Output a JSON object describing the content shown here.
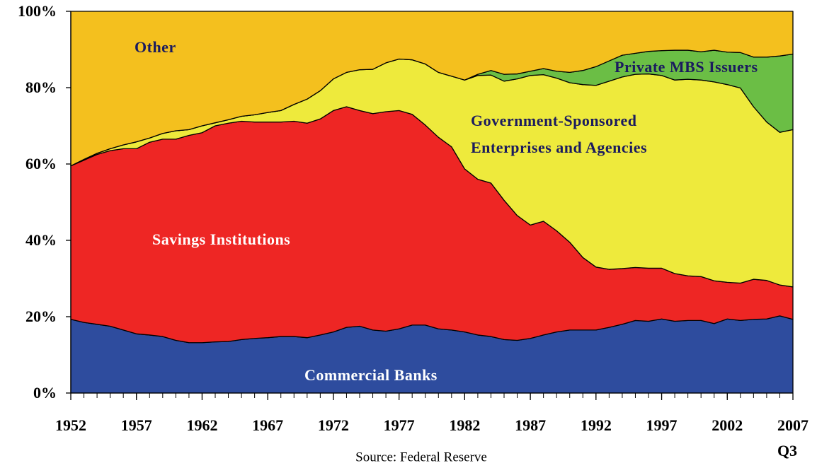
{
  "chart_data": {
    "type": "stacked-area",
    "x": [
      1952,
      1953,
      1954,
      1955,
      1956,
      1957,
      1958,
      1959,
      1960,
      1961,
      1962,
      1963,
      1964,
      1965,
      1966,
      1967,
      1968,
      1969,
      1970,
      1971,
      1972,
      1973,
      1974,
      1975,
      1976,
      1977,
      1978,
      1979,
      1980,
      1981,
      1982,
      1983,
      1984,
      1985,
      1986,
      1987,
      1988,
      1989,
      1990,
      1991,
      1992,
      1993,
      1994,
      1995,
      1996,
      1997,
      1998,
      1999,
      2000,
      2001,
      2002,
      2003,
      2004,
      2005,
      2006,
      2007
    ],
    "series": [
      {
        "name": "Commercial Banks",
        "color": "#2e4c9e",
        "values": [
          19.3,
          18.5,
          18,
          17.5,
          16.5,
          15.5,
          15.2,
          14.8,
          13.8,
          13.2,
          13.2,
          13.4,
          13.5,
          14,
          14.3,
          14.5,
          14.8,
          14.8,
          14.5,
          15.2,
          16,
          17.2,
          17.5,
          16.5,
          16.2,
          16.8,
          17.8,
          17.8,
          16.8,
          16.5,
          16,
          15.2,
          14.8,
          14,
          13.8,
          14.3,
          15.2,
          16,
          16.5,
          16.5,
          16.5,
          17.2,
          18,
          19,
          18.8,
          19.4,
          18.8,
          19,
          19,
          18.2,
          19.4,
          19,
          19.3,
          19.4,
          20.2,
          19.3
        ]
      },
      {
        "name": "Savings Institutions",
        "color": "#ee2624",
        "values": [
          40.2,
          42.5,
          44.5,
          46,
          47.5,
          48.5,
          50.5,
          51.7,
          52.7,
          54.3,
          55,
          56.6,
          57.2,
          57.2,
          56.7,
          56.5,
          56.2,
          56.4,
          56.2,
          56.6,
          58,
          57.8,
          56.5,
          56.7,
          57.5,
          57.2,
          55.2,
          52.4,
          50.2,
          48,
          42.7,
          40.8,
          40.2,
          36.5,
          32.7,
          29.7,
          29.8,
          26.5,
          23,
          19,
          16.5,
          15.2,
          14.6,
          13.9,
          13.9,
          13.3,
          12.5,
          11.7,
          11.5,
          11.2,
          9.6,
          9.8,
          10.5,
          10.1,
          8.1,
          8.5
        ]
      },
      {
        "name": "Government-Sponsored Enterprises and Agencies",
        "color": "#eeea3c",
        "values": [
          0,
          0.2,
          0.3,
          0.5,
          1,
          1.8,
          1.1,
          1.5,
          2.2,
          1.5,
          1.8,
          0.8,
          0.9,
          1.3,
          1.9,
          2.5,
          3,
          4.4,
          6.3,
          7.4,
          8.3,
          9,
          10.7,
          11.6,
          12.8,
          13.5,
          14.3,
          16,
          17,
          18.5,
          23.3,
          27.2,
          28.3,
          31.2,
          35.8,
          39.2,
          38.4,
          40,
          41.8,
          45.3,
          47.6,
          49.3,
          50.2,
          50.6,
          50.9,
          50.5,
          50.7,
          51.5,
          51.5,
          52.1,
          51.8,
          51.1,
          45.2,
          41.5,
          40,
          41.2
        ]
      },
      {
        "name": "Private MBS Issuers",
        "color": "#6bbe45",
        "values": [
          0,
          0,
          0,
          0,
          0,
          0,
          0,
          0,
          0,
          0,
          0,
          0,
          0,
          0,
          0,
          0,
          0,
          0,
          0,
          0,
          0,
          0,
          0,
          0,
          0,
          0,
          0,
          0,
          0,
          0,
          0,
          0.3,
          1.2,
          1.8,
          1.3,
          1.1,
          1.6,
          1.8,
          2.7,
          3.7,
          4.9,
          5.3,
          5.7,
          5.5,
          5.9,
          6.5,
          7.8,
          7.6,
          7.4,
          8.3,
          8.5,
          9.3,
          13,
          17,
          20,
          19.8
        ]
      },
      {
        "name": "Other",
        "color": "#f4c01e",
        "values": [
          40.5,
          38.8,
          37.2,
          36,
          35,
          34.2,
          33.2,
          32,
          31.3,
          31,
          30,
          29.2,
          28.4,
          27.5,
          27.1,
          26.5,
          26,
          24.4,
          23,
          20.8,
          17.7,
          16,
          15.3,
          15.2,
          13.5,
          12.5,
          12.7,
          13.8,
          16,
          17,
          18,
          16.5,
          15.5,
          16.5,
          16.4,
          15.7,
          15,
          15.7,
          16,
          15.5,
          14.5,
          13,
          11.5,
          11,
          10.5,
          10.3,
          10.2,
          10.2,
          10.6,
          10.2,
          10.7,
          10.8,
          12,
          12,
          11.7,
          11.2
        ]
      }
    ],
    "xlim": [
      1952,
      2007
    ],
    "xticks": [
      1952,
      1957,
      1962,
      1967,
      1972,
      1977,
      1982,
      1987,
      1992,
      1997,
      2002,
      2007
    ],
    "ylim": [
      0,
      100
    ],
    "yticks": [
      {
        "value": 0,
        "label": "0%"
      },
      {
        "value": 20,
        "label": "20%"
      },
      {
        "value": 40,
        "label": "40%"
      },
      {
        "value": 60,
        "label": "60%"
      },
      {
        "value": 80,
        "label": "80%"
      },
      {
        "value": 100,
        "label": "100%"
      }
    ],
    "annotations": [
      "Q3"
    ],
    "source": "Source: Federal Reserve"
  }
}
